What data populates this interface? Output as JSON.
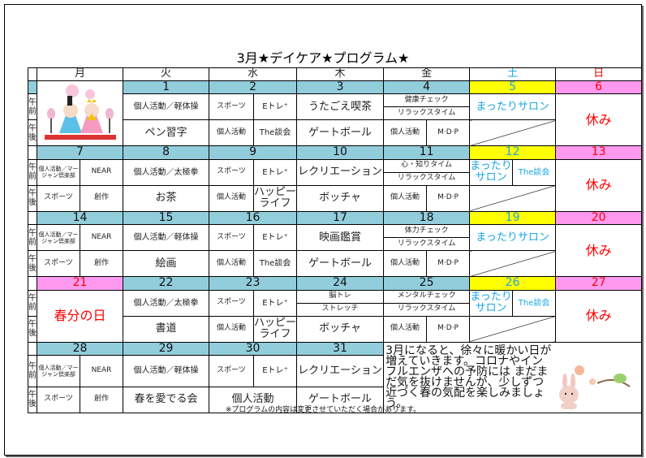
{
  "title": "3月★デイケア★プログラム★",
  "days": [
    "月",
    "火",
    "水",
    "木",
    "金",
    "土",
    "日"
  ],
  "am_label": "午前",
  "pm_label": "午後",
  "colors": {
    "date_bg": "#92cddc",
    "sat_bg": "#ffff00",
    "sun_bg": "#ff99f0",
    "sat_text": "#1aa7e0",
    "red": "#ff0000"
  },
  "w1": {
    "dates": [
      "",
      "1",
      "2",
      "3",
      "4",
      "5",
      "6"
    ],
    "tue_am": "個人活動／軽体操",
    "wed_am1": "スポーツ",
    "wed_am2": "Eトレ⁺",
    "thu_am": "うたごえ喫茶",
    "fri_am1": "健康チェック",
    "fri_am2": "リラックスタイム",
    "sat_am": "まったりサロン",
    "sun": "休み",
    "tue_pm": "ペン習字",
    "wed_pm1": "個人活動",
    "wed_pm2": "The談会",
    "thu_pm": "ゲートボール",
    "fri_pm1": "個人活動",
    "fri_pm2": "M·D·P"
  },
  "w2": {
    "dates": [
      "7",
      "8",
      "9",
      "10",
      "11",
      "12",
      "13"
    ],
    "mon_am1": "個人活動／マージャン倶楽部",
    "mon_am2": "NEAR",
    "tue_am": "個人活動／太極拳",
    "wed_am1": "スポーツ",
    "wed_am2": "Eトレ⁺",
    "thu_am": "レクリエーション",
    "fri_am1": "心・知りタイム",
    "fri_am2": "リラックスタイム",
    "sat_am1": "まったりサロン",
    "sat_am2": "The談会",
    "sun": "休み",
    "mon_pm1": "スポーツ",
    "mon_pm2": "創作",
    "tue_pm": "お茶",
    "wed_pm1": "個人活動",
    "wed_pm2": "ハッピーライフ",
    "thu_pm": "ボッチャ",
    "fri_pm1": "個人活動",
    "fri_pm2": "M·D·P"
  },
  "w3": {
    "dates": [
      "14",
      "15",
      "16",
      "17",
      "18",
      "19",
      "20"
    ],
    "mon_am1": "個人活動／マージャン倶楽部",
    "mon_am2": "NEAR",
    "tue_am": "個人活動／軽体操",
    "wed_am1": "スポーツ",
    "wed_am2": "Eトレ⁺",
    "thu_am": "映画鑑賞",
    "fri_am1": "体力チェック",
    "fri_am2": "リラックスタイム",
    "sat_am": "まったりサロン",
    "sun": "休み",
    "mon_pm1": "スポーツ",
    "mon_pm2": "創作",
    "tue_pm": "絵画",
    "wed_pm1": "個人活動",
    "wed_pm2": "The談会",
    "thu_pm": "ゲートボール",
    "fri_pm1": "個人活動",
    "fri_pm2": "M·D·P"
  },
  "w4": {
    "dates": [
      "21",
      "22",
      "23",
      "24",
      "25",
      "26",
      "27"
    ],
    "holiday": "春分の日",
    "tue_am": "個人活動／太極拳",
    "wed_am1": "スポーツ",
    "wed_am2": "Eトレ⁺",
    "thu_am1": "脳トレ",
    "thu_am2": "ストレッチ",
    "fri_am1": "メンタルチェック",
    "fri_am2": "リラックスタイム",
    "sat_am1": "まったりサロン",
    "sat_am2": "The談会",
    "sun": "休み",
    "tue_pm": "書道",
    "wed_pm1": "個人活動",
    "wed_pm2": "ハッピーライフ",
    "thu_pm": "ボッチャ",
    "fri_pm1": "個人活動",
    "fri_pm2": "M·D·P"
  },
  "w5": {
    "dates": [
      "28",
      "29",
      "30",
      "31"
    ],
    "mon_am1": "個人活動／マージャン倶楽部",
    "mon_am2": "NEAR",
    "tue_am": "個人活動／軽体操",
    "wed_am1": "スポーツ",
    "wed_am2": "Eトレ⁺",
    "thu_am": "レクリエーション",
    "mon_pm1": "スポーツ",
    "mon_pm2": "創作",
    "tue_pm": "春を愛でる会",
    "wed_pm": "個人活動",
    "thu_pm": "ゲートボール"
  },
  "message": "3月になると、徐々に暖かい日が増えていきます。コロナやインフルエンザへの予防には まだまだ気を抜けませんが、少しずつ近づく春の気配を楽しみましょう。",
  "note": "※プログラムの内容は変更させていただく場合があります。"
}
